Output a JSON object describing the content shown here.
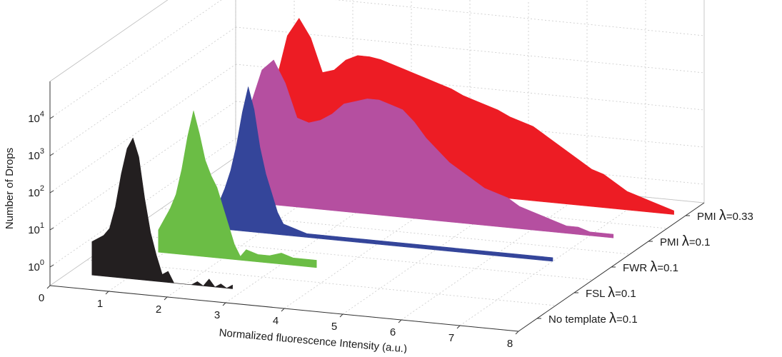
{
  "chart_data": {
    "type": "area",
    "xlabel": "Normalized fluorescence Intensity (a.u.)",
    "ylabel": "Number of Drops",
    "x_ticks": [
      "0",
      "1",
      "2",
      "3",
      "4",
      "5",
      "6",
      "7",
      "8"
    ],
    "xlim": [
      0,
      8
    ],
    "z_scale": "log",
    "z_ticks": [
      {
        "base": "10",
        "exp": "0"
      },
      {
        "base": "10",
        "exp": "1"
      },
      {
        "base": "10",
        "exp": "2"
      },
      {
        "base": "10",
        "exp": "3"
      },
      {
        "base": "10",
        "exp": "4"
      }
    ],
    "grid": true,
    "series": [
      {
        "name": "No template",
        "lambda": "=0.1",
        "color": "#231f20",
        "x": [
          0.4,
          0.5,
          0.6,
          0.7,
          0.8,
          0.9,
          1.0,
          1.1,
          1.2,
          1.3,
          1.4,
          1.5,
          1.6,
          1.7,
          1.8,
          1.9,
          2.0,
          2.1,
          2.2,
          2.3,
          2.4,
          2.5,
          2.6,
          2.7,
          2.8
        ],
        "log_counts": [
          0.9,
          1.0,
          1.1,
          1.3,
          1.9,
          2.8,
          3.5,
          3.8,
          3.3,
          2.2,
          1.3,
          0.7,
          0.2,
          0.3,
          0,
          0,
          0,
          0,
          0.1,
          0,
          0.2,
          0,
          0.1,
          0,
          0.1
        ]
      },
      {
        "name": "FSL",
        "lambda": "=0.1",
        "color": "#6bbd45",
        "x": [
          0.9,
          1.0,
          1.1,
          1.2,
          1.3,
          1.4,
          1.5,
          1.6,
          1.7,
          1.8,
          1.9,
          2.0,
          2.1,
          2.2,
          2.3,
          2.4,
          2.6,
          2.8,
          3.0,
          3.2,
          3.6
        ],
        "log_counts": [
          0.6,
          0.9,
          1.2,
          1.6,
          2.3,
          3.2,
          3.9,
          3.3,
          2.6,
          2.2,
          1.9,
          1.4,
          0.9,
          0.4,
          0.1,
          0.3,
          0.2,
          0.2,
          0.3,
          0.2,
          0.2
        ]
      },
      {
        "name": "FWR",
        "lambda": "=0.1",
        "color": "#34459a",
        "x": [
          1.2,
          1.3,
          1.4,
          1.5,
          1.6,
          1.7,
          1.8,
          1.9,
          2.0,
          2.1,
          2.2,
          2.3,
          2.4,
          2.6,
          2.8,
          3.0,
          3.4,
          4.0,
          5.0,
          6.0,
          7.0
        ],
        "log_counts": [
          0.4,
          0.7,
          1.1,
          1.6,
          2.3,
          3.2,
          3.9,
          3.3,
          2.3,
          1.6,
          1.1,
          0.6,
          0.3,
          0.2,
          0.1,
          0.1,
          0.1,
          0.1,
          0.1,
          0.1,
          0.1
        ]
      },
      {
        "name": "PMI",
        "lambda": "=0.1",
        "color": "#b54fa0",
        "x": [
          1.0,
          1.2,
          1.4,
          1.6,
          1.8,
          2.0,
          2.2,
          2.4,
          2.6,
          2.8,
          3.0,
          3.2,
          3.4,
          3.6,
          3.8,
          4.0,
          4.2,
          4.4,
          4.6,
          4.8,
          5.0,
          5.2,
          5.4,
          5.6,
          5.8,
          6.0,
          6.2,
          6.4,
          6.6,
          6.8,
          7.0,
          7.2,
          7.4
        ],
        "log_counts": [
          1.2,
          2.6,
          3.6,
          3.9,
          3.3,
          2.4,
          2.3,
          2.4,
          2.6,
          2.9,
          3.0,
          3.1,
          3.1,
          3.0,
          2.9,
          2.6,
          2.2,
          1.9,
          1.6,
          1.4,
          1.2,
          1.0,
          0.9,
          0.8,
          0.6,
          0.5,
          0.4,
          0.3,
          0.2,
          0.2,
          0.1,
          0.1,
          0.1
        ]
      },
      {
        "name": "PMI",
        "lambda": "=0.33",
        "color": "#ed1c24",
        "x": [
          1.0,
          1.2,
          1.4,
          1.6,
          1.8,
          2.0,
          2.2,
          2.4,
          2.6,
          2.8,
          3.0,
          3.2,
          3.4,
          3.6,
          3.8,
          4.0,
          4.2,
          4.4,
          4.6,
          4.8,
          5.0,
          5.2,
          5.4,
          5.6,
          5.8,
          6.0,
          6.2,
          6.4,
          6.6,
          6.8,
          7.0,
          7.2,
          7.4,
          7.6,
          7.8
        ],
        "log_counts": [
          2.5,
          3.8,
          4.3,
          3.8,
          2.9,
          3.0,
          3.3,
          3.45,
          3.45,
          3.4,
          3.3,
          3.2,
          3.1,
          3.0,
          2.9,
          2.8,
          2.65,
          2.55,
          2.45,
          2.35,
          2.2,
          2.1,
          2.0,
          1.8,
          1.6,
          1.4,
          1.2,
          1.0,
          0.9,
          0.7,
          0.5,
          0.4,
          0.3,
          0.2,
          0.1
        ]
      }
    ],
    "lambda_symbol": "λ"
  }
}
